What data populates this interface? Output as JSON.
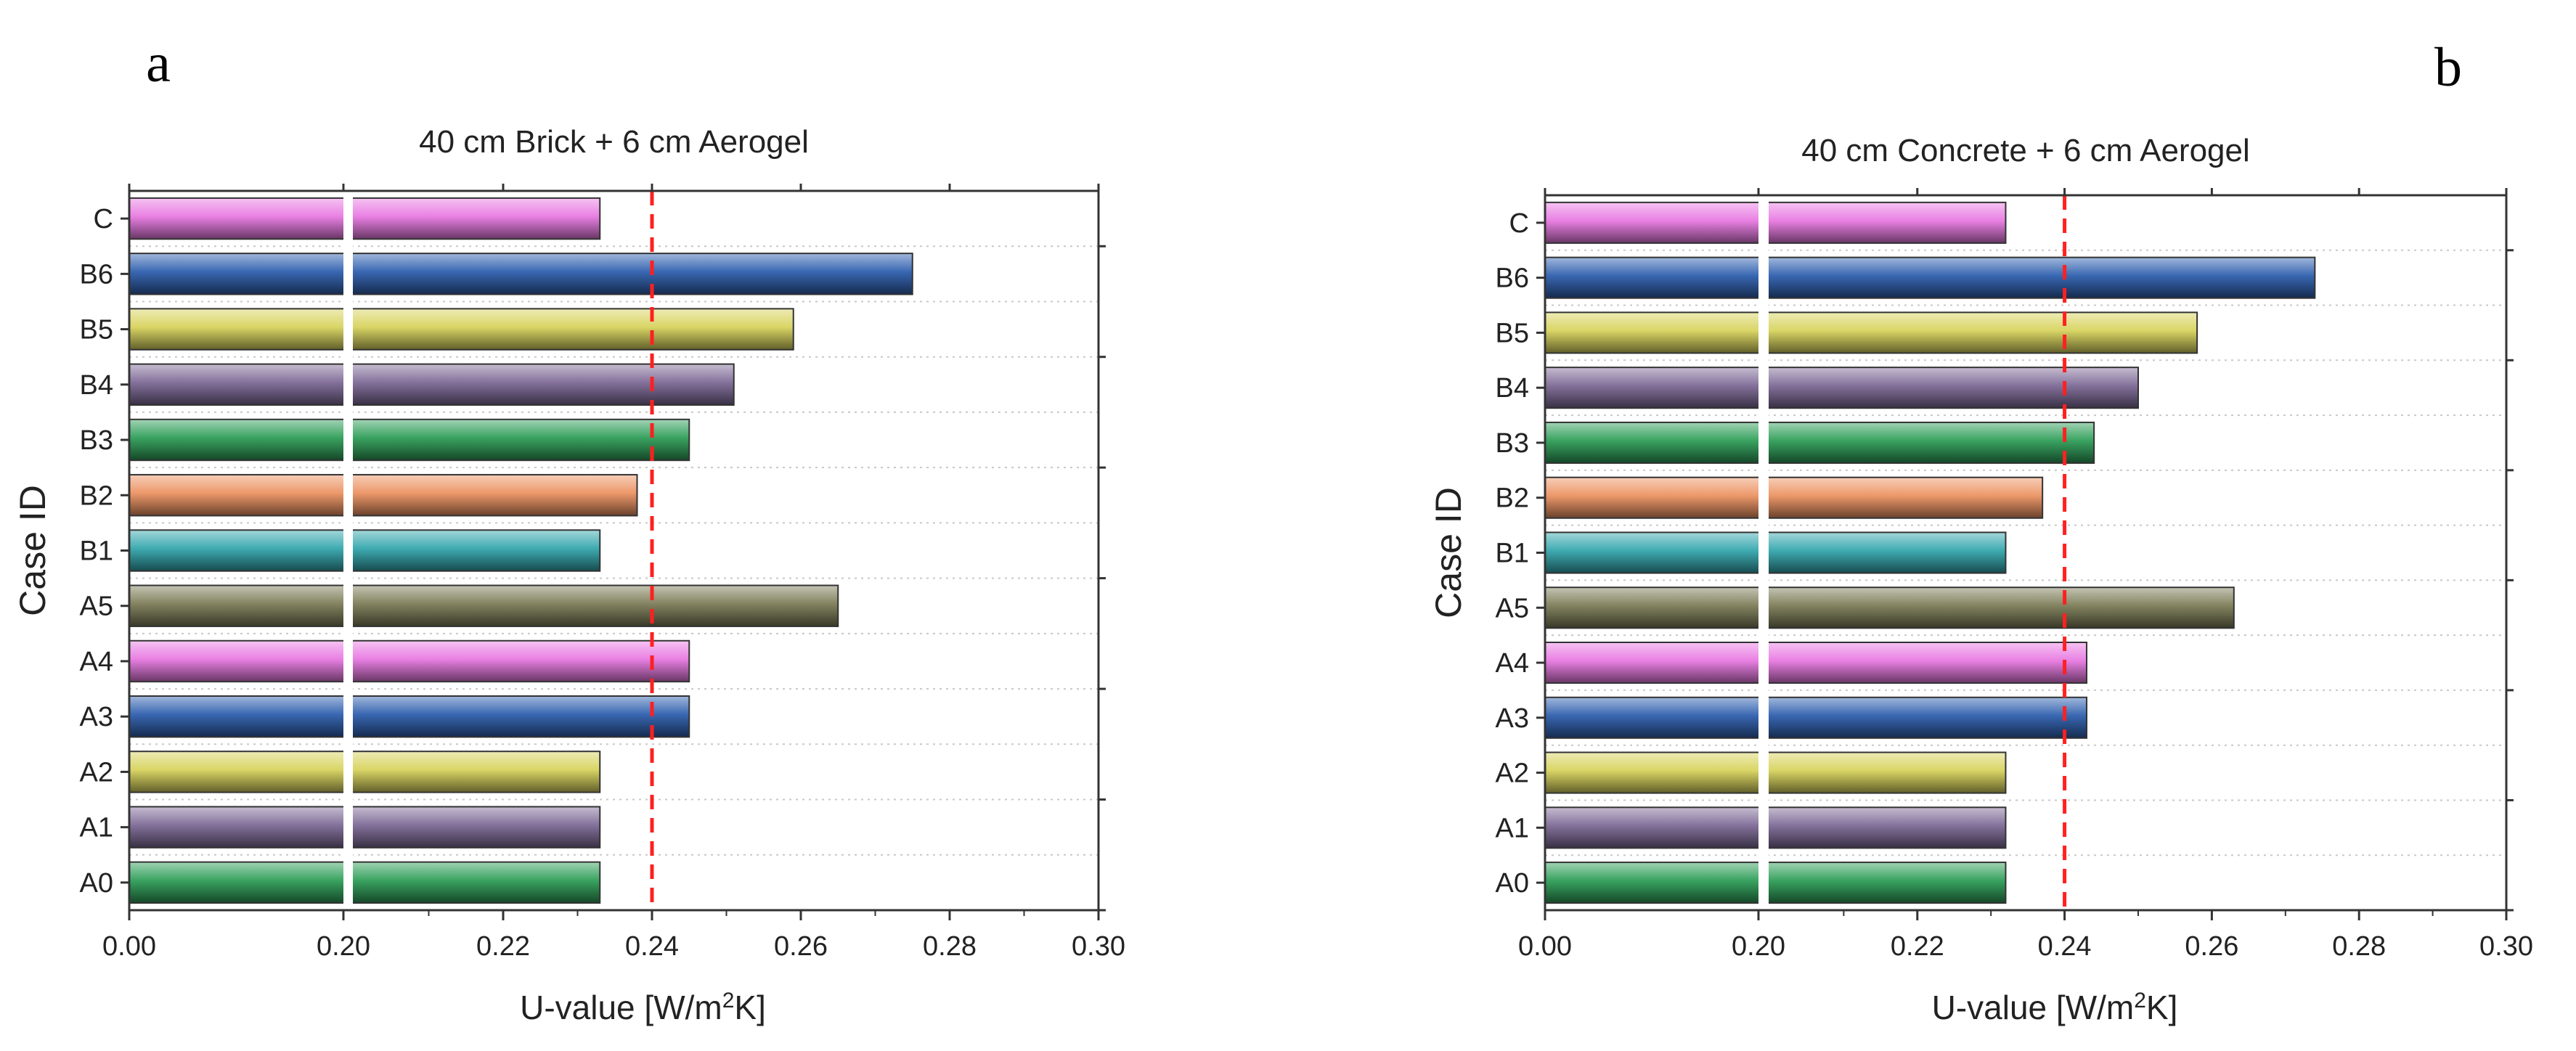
{
  "figure": {
    "panel_labels": [
      "a",
      "b"
    ]
  },
  "colors": {
    "magenta": "#e879e1",
    "blue": "#2f5fae",
    "yellow": "#d7d35d",
    "purple": "#7d6a96",
    "green": "#2f9e58",
    "orange": "#ec9362",
    "cyan": "#34a7ad",
    "olive": "#7c7c58",
    "threshold": "#ff2020"
  },
  "chart_data": [
    {
      "type": "bar",
      "orientation": "horizontal",
      "panel": "a",
      "title": "40 cm Brick + 6 cm Aerogel",
      "xlabel": "U-value [W/m²K]",
      "xlabel_parts": {
        "base": "U-value [W/m",
        "sup": "2",
        "tail": "K]"
      },
      "ylabel": "Case ID",
      "xlim": [
        0.0,
        0.3
      ],
      "axis_break_at": 0.2,
      "xticks": [
        "0.00",
        "0.20",
        "0.22",
        "0.24",
        "0.26",
        "0.28",
        "0.30"
      ],
      "threshold": 0.24,
      "categories": [
        "C",
        "B6",
        "B5",
        "B4",
        "B3",
        "B2",
        "B1",
        "A5",
        "A4",
        "A3",
        "A2",
        "A1",
        "A0"
      ],
      "values": [
        0.233,
        0.275,
        0.259,
        0.251,
        0.245,
        0.238,
        0.233,
        0.265,
        0.245,
        0.245,
        0.233,
        0.233,
        0.233
      ],
      "bar_colors": [
        "magenta",
        "blue",
        "yellow",
        "purple",
        "green",
        "orange",
        "cyan",
        "olive",
        "magenta",
        "blue",
        "yellow",
        "purple",
        "green"
      ]
    },
    {
      "type": "bar",
      "orientation": "horizontal",
      "panel": "b",
      "title": "40 cm Concrete + 6 cm Aerogel",
      "xlabel": "U-value [W/m²K]",
      "xlabel_parts": {
        "base": "U-value [W/m",
        "sup": "2",
        "tail": "K]"
      },
      "ylabel": "Case ID",
      "xlim": [
        0.0,
        0.3
      ],
      "axis_break_at": 0.2,
      "xticks": [
        "0.00",
        "0.20",
        "0.22",
        "0.24",
        "0.26",
        "0.28",
        "0.30"
      ],
      "threshold": 0.24,
      "categories": [
        "C",
        "B6",
        "B5",
        "B4",
        "B3",
        "B2",
        "B1",
        "A5",
        "A4",
        "A3",
        "A2",
        "A1",
        "A0"
      ],
      "values": [
        0.232,
        0.274,
        0.258,
        0.25,
        0.244,
        0.237,
        0.232,
        0.263,
        0.243,
        0.243,
        0.232,
        0.232,
        0.232
      ],
      "bar_colors": [
        "magenta",
        "blue",
        "yellow",
        "purple",
        "green",
        "orange",
        "cyan",
        "olive",
        "magenta",
        "blue",
        "yellow",
        "purple",
        "green"
      ]
    }
  ]
}
